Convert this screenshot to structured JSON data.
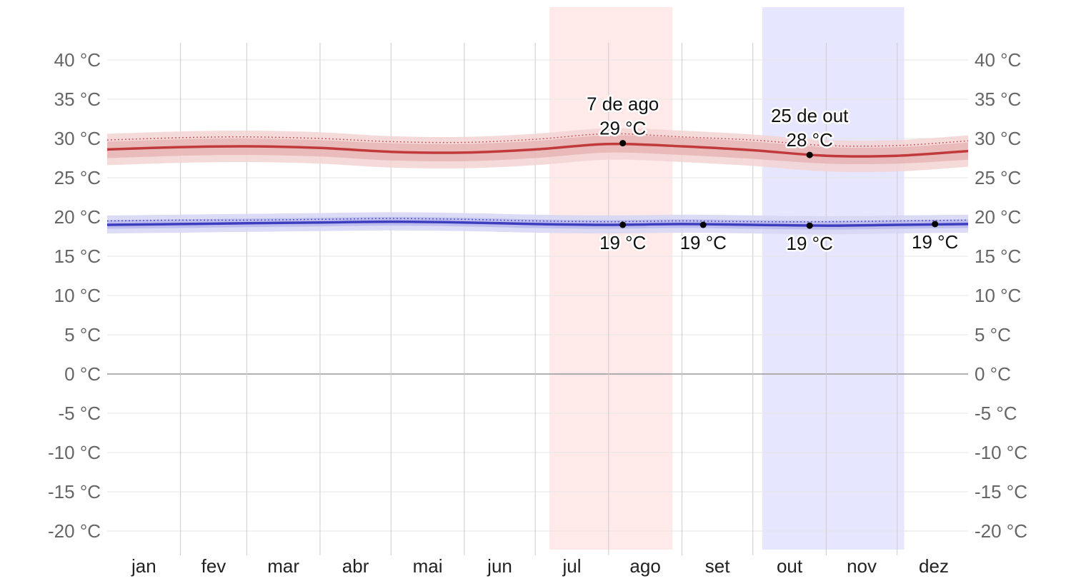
{
  "chart_data": {
    "type": "line",
    "title": "",
    "xlabel": "",
    "ylabel": "",
    "ylim": [
      -22.5,
      42.5
    ],
    "y_ticks": [
      40,
      35,
      30,
      25,
      20,
      15,
      10,
      5,
      0,
      -5,
      -10,
      -15,
      -20
    ],
    "y_tick_labels": [
      "40 °C",
      "35 °C",
      "30 °C",
      "25 °C",
      "20 °C",
      "15 °C",
      "10 °C",
      "5 °C",
      "0 °C",
      "-5 °C",
      "-10 °C",
      "-15 °C",
      "-20 °C"
    ],
    "months": [
      "jan",
      "fev",
      "mar",
      "abr",
      "mai",
      "jun",
      "jul",
      "ago",
      "set",
      "out",
      "nov",
      "dez"
    ],
    "x_unit": "day of year",
    "grid": true,
    "colors": {
      "high_line": "#c0393b",
      "high_band_outer": "#f3d4d4",
      "high_band_inner": "#e8b5b5",
      "low_line": "#3d3dc0",
      "low_band_outer": "#d6d6f5",
      "low_band_inner": "#b9b9ec",
      "hot_season": "#ffe9e9",
      "cold_season": "#e6e6ff",
      "gridline": "#e6e6e6",
      "month_divider": "#cccccc",
      "zero_line": "#999999"
    },
    "shaded_periods": [
      {
        "start_day": 188,
        "end_day": 240,
        "color": "hot_season"
      },
      {
        "start_day": 278,
        "end_day": 338,
        "color": "cold_season"
      }
    ],
    "series": [
      {
        "key": "high",
        "x": [
          1,
          32,
          60,
          91,
          121,
          152,
          182,
          213,
          244,
          274,
          305,
          335,
          365
        ],
        "mean": [
          28.6,
          28.9,
          29.0,
          28.8,
          28.3,
          28.2,
          28.6,
          29.3,
          29.0,
          28.5,
          27.8,
          27.8,
          28.4
        ],
        "p25_p75": [
          [
            27.5,
            29.6
          ],
          [
            27.8,
            29.9
          ],
          [
            27.9,
            30.0
          ],
          [
            27.7,
            29.8
          ],
          [
            27.2,
            29.4
          ],
          [
            27.1,
            29.3
          ],
          [
            27.5,
            29.7
          ],
          [
            28.2,
            30.4
          ],
          [
            27.9,
            30.1
          ],
          [
            27.4,
            29.6
          ],
          [
            26.8,
            28.9
          ],
          [
            26.8,
            28.9
          ],
          [
            27.3,
            29.5
          ]
        ],
        "p10_p90": [
          [
            26.6,
            30.6
          ],
          [
            26.9,
            30.9
          ],
          [
            27.0,
            31.0
          ],
          [
            26.8,
            30.8
          ],
          [
            26.3,
            30.3
          ],
          [
            26.2,
            30.2
          ],
          [
            26.6,
            30.6
          ],
          [
            27.3,
            31.3
          ],
          [
            27.0,
            31.0
          ],
          [
            26.5,
            30.5
          ],
          [
            25.8,
            29.8
          ],
          [
            25.8,
            29.8
          ],
          [
            26.4,
            30.4
          ]
        ],
        "dotted": [
          29.8,
          30.1,
          30.2,
          30.0,
          29.6,
          29.5,
          29.9,
          30.6,
          30.2,
          29.8,
          29.1,
          29.1,
          29.7
        ]
      },
      {
        "key": "low",
        "x": [
          1,
          32,
          60,
          91,
          121,
          152,
          182,
          213,
          244,
          274,
          305,
          335,
          365
        ],
        "mean": [
          19.0,
          19.1,
          19.2,
          19.3,
          19.4,
          19.3,
          19.1,
          19.0,
          19.1,
          19.0,
          18.9,
          19.0,
          19.1
        ],
        "p25_p75": [
          [
            18.5,
            19.6
          ],
          [
            18.6,
            19.7
          ],
          [
            18.7,
            19.8
          ],
          [
            18.8,
            19.9
          ],
          [
            18.9,
            20.0
          ],
          [
            18.8,
            19.9
          ],
          [
            18.6,
            19.7
          ],
          [
            18.5,
            19.6
          ],
          [
            18.6,
            19.7
          ],
          [
            18.5,
            19.6
          ],
          [
            18.4,
            19.5
          ],
          [
            18.5,
            19.6
          ],
          [
            18.6,
            19.7
          ]
        ],
        "p10_p90": [
          [
            17.9,
            20.2
          ],
          [
            18.0,
            20.3
          ],
          [
            18.1,
            20.4
          ],
          [
            18.2,
            20.5
          ],
          [
            18.3,
            20.6
          ],
          [
            18.2,
            20.5
          ],
          [
            18.0,
            20.3
          ],
          [
            17.9,
            20.2
          ],
          [
            18.0,
            20.3
          ],
          [
            17.9,
            20.2
          ],
          [
            17.8,
            20.1
          ],
          [
            17.9,
            20.2
          ],
          [
            18.0,
            20.3
          ]
        ],
        "dotted": [
          19.5,
          19.6,
          19.6,
          19.7,
          19.8,
          19.7,
          19.5,
          19.4,
          19.5,
          19.4,
          19.4,
          19.5,
          19.6
        ]
      }
    ],
    "annotations": [
      {
        "day": 219,
        "value": 29.4,
        "label_lines": [
          "7 de ago",
          "29 °C"
        ],
        "placement": "above"
      },
      {
        "day": 298,
        "value": 27.9,
        "label_lines": [
          "25 de out",
          "28 °C"
        ],
        "placement": "above"
      },
      {
        "day": 219,
        "value": 19.0,
        "label_lines": [
          "19 °C"
        ],
        "placement": "below"
      },
      {
        "day": 253,
        "value": 19.0,
        "label_lines": [
          "19 °C"
        ],
        "placement": "below"
      },
      {
        "day": 298,
        "value": 18.9,
        "label_lines": [
          "19 °C"
        ],
        "placement": "below"
      },
      {
        "day": 351,
        "value": 19.1,
        "label_lines": [
          "19 °C"
        ],
        "placement": "below"
      }
    ]
  }
}
